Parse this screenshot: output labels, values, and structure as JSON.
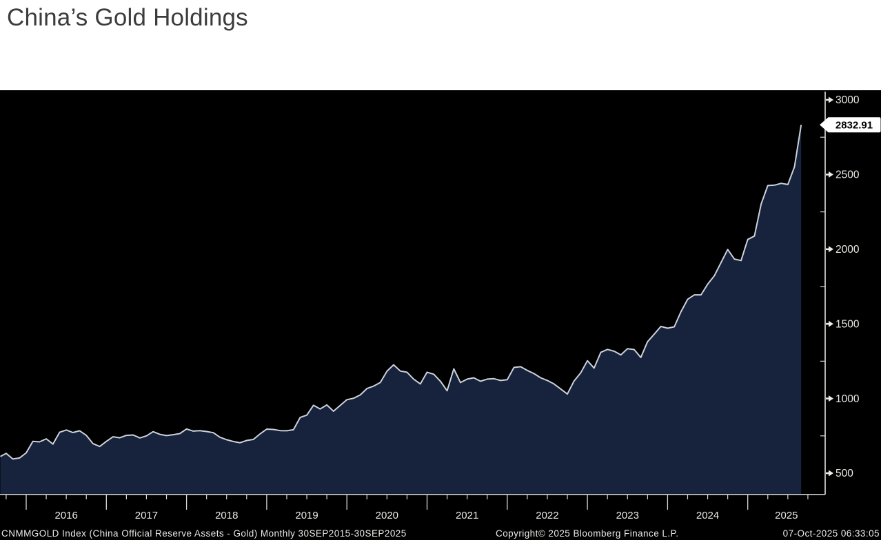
{
  "page": {
    "title": "China’s Gold Holdings"
  },
  "chart_data": {
    "type": "area",
    "title": "China’s Gold Holdings",
    "series_name": "CNMMGOLD Index (China Official Reserve Assets - Gold)",
    "frequency": "Monthly",
    "period": "30SEP2015-30SEP2025",
    "x_start_month": "SEP2015",
    "x_end_month": "SEP2025",
    "x_year_labels": [
      "2016",
      "2017",
      "2018",
      "2019",
      "2020",
      "2021",
      "2022",
      "2023",
      "2024",
      "2025"
    ],
    "y_ticks": [
      500,
      1000,
      1500,
      2000,
      2500,
      3000
    ],
    "y_minor_ticks": [
      750,
      1250,
      1750,
      2250,
      2750
    ],
    "ylim": [
      357,
      3050
    ],
    "last_value": 2832.91,
    "last_value_label": "2832.91",
    "values": [
      612,
      633,
      595,
      602,
      636,
      713,
      710,
      730,
      695,
      774,
      789,
      772,
      784,
      753,
      698,
      679,
      713,
      744,
      737,
      753,
      756,
      736,
      750,
      778,
      760,
      752,
      758,
      765,
      796,
      782,
      785,
      779,
      771,
      741,
      724,
      712,
      704,
      719,
      726,
      763,
      795,
      793,
      785,
      784,
      791,
      873,
      889,
      955,
      930,
      957,
      915,
      954,
      992,
      1002,
      1024,
      1067,
      1083,
      1108,
      1183,
      1226,
      1184,
      1176,
      1130,
      1098,
      1176,
      1163,
      1116,
      1052,
      1199,
      1107,
      1130,
      1139,
      1116,
      1130,
      1133,
      1121,
      1126,
      1208,
      1213,
      1188,
      1167,
      1139,
      1121,
      1098,
      1064,
      1030,
      1117,
      1172,
      1253,
      1204,
      1309,
      1329,
      1317,
      1292,
      1334,
      1328,
      1275,
      1380,
      1431,
      1483,
      1471,
      1480,
      1581,
      1664,
      1694,
      1694,
      1766,
      1822,
      1910,
      1998,
      1934,
      1924,
      2065,
      2088,
      2302,
      2426,
      2429,
      2441,
      2433,
      2552,
      2832.91
    ],
    "legend_position": "none",
    "grid": false,
    "colors": {
      "panel_bg": "#000000",
      "area_fill": "#17233c",
      "line": "#ccd2d9",
      "axis": "#e2e2e0",
      "tick": "#d9d9d6",
      "tick_label": "#edebe5",
      "badge_bg": "#ffffff",
      "badge_text": "#000000"
    }
  },
  "status_bar": {
    "left": "CNMMGOLD Index (China Official Reserve Assets - Gold) Monthly 30SEP2015-30SEP2025",
    "center": "Copyright© 2025 Bloomberg Finance L.P.",
    "right": "07-Oct-2025 06:33:05"
  }
}
